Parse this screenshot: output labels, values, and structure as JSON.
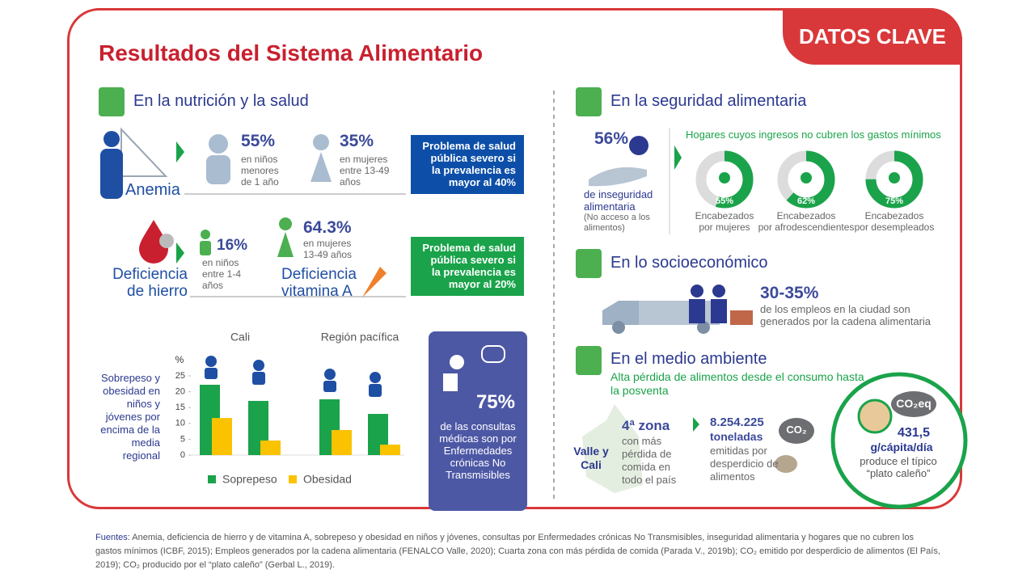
{
  "header": {
    "title": "Resultados del Sistema Alimentario",
    "badge": "DATOS CLAVE"
  },
  "nutrition": {
    "title": "En la nutrición y la salud",
    "anemia": {
      "label": "Anemia",
      "stats": [
        {
          "value": "55%",
          "text": "en niños menores de 1 año"
        },
        {
          "value": "35%",
          "text": "en mujeres entre 13-49 años"
        }
      ],
      "callout": "Problema de salud pública severo si la prevalencia es mayor al 40%"
    },
    "iron": {
      "label": "Deficiencia de hierro",
      "stat": {
        "value": "16%",
        "text": "en niños entre 1-4 años"
      }
    },
    "vitamin_a": {
      "label": "Deficiencia vitamina A",
      "stat": {
        "value": "64.3%",
        "text": "en mujeres 13-49 años"
      },
      "callout": "Problema de salud pública severo si la prevalencia es mayor al 20%"
    },
    "consultations": {
      "value": "75%",
      "text": "de las consultas médicas son por Enfermedades crónicas No Transmisibles"
    }
  },
  "food_security": {
    "title": "En la seguridad alimentaria",
    "stat": {
      "value": "56%",
      "text": "de inseguridad alimentaria",
      "note": "(No acceso a los alimentos)"
    }
  },
  "socioeconomic": {
    "title": "En lo socioeconómico",
    "stat": {
      "value": "30-35%",
      "text": "de los empleos en la ciudad son generados por la cadena alimentaria"
    }
  },
  "environment": {
    "title": "En el medio ambiente",
    "subtitle": "Alta pérdida de alimentos desde el consumo hasta la posventa",
    "zone": {
      "place": "Valle y Cali",
      "rank": "4ª zona",
      "text": "con más pérdida de comida en todo el país"
    },
    "waste": {
      "icon": "CO₂",
      "value": "8.254.225",
      "unit": "toneladas",
      "text": "emitidas por desperdicio de alimentos"
    },
    "plate": {
      "icon": "CO₂eq",
      "value": "431,5",
      "unit": "g/cápita/día",
      "text": "produce el típico “plato caleño”"
    }
  },
  "chart_data": [
    {
      "type": "bar",
      "title": "Sobrepeso y obesidad en niños y jóvenes por encima de la media regional",
      "ylabel": "%",
      "groups": [
        "Cali",
        "Región pacífica"
      ],
      "categories": [
        null,
        null,
        null,
        null
      ],
      "ylim": [
        0,
        25
      ],
      "yticks": [
        0,
        5,
        10,
        15,
        20,
        25
      ],
      "series": [
        {
          "name": "Soprepeso",
          "color": "#1aa34a",
          "values": [
            22.2,
            17.1,
            17.6,
            13.0
          ]
        },
        {
          "name": "Obesidad",
          "color": "#fbc200",
          "values": [
            11.7,
            4.6,
            7.9,
            3.3
          ]
        }
      ]
    },
    {
      "type": "donut",
      "title": "Hogares cuyos ingresos no cubren los gastos mínimos",
      "categories": [
        "Encabezados por mujeres",
        "Encabezados por afrodescendientes",
        "Encabezados por desempleados"
      ],
      "values": [
        55,
        62,
        75
      ],
      "value_labels": [
        "55%",
        "62%",
        "75%"
      ],
      "color": "#1aa34a",
      "track_color": "#dcdcdc"
    }
  ],
  "footer": {
    "label": "Fuentes:",
    "text": "Anemia, deficiencia de hierro y de vitamina A, sobrepeso y obesidad en niños y jóvenes, consultas por Enfermedades crónicas No Transmisibles, inseguridad alimentaria y hogares que no cubren los gastos mínimos (ICBF, 2015); Empleos generados por la cadena alimentaria (FENALCO Valle, 2020); Cuarta zona con más pérdida de comida (Parada V., 2019b); CO₂ emitido por desperdicio de alimentos (El País, 2019); CO₂ producido por el “plato caleño” (Gerbal L., 2019)."
  }
}
